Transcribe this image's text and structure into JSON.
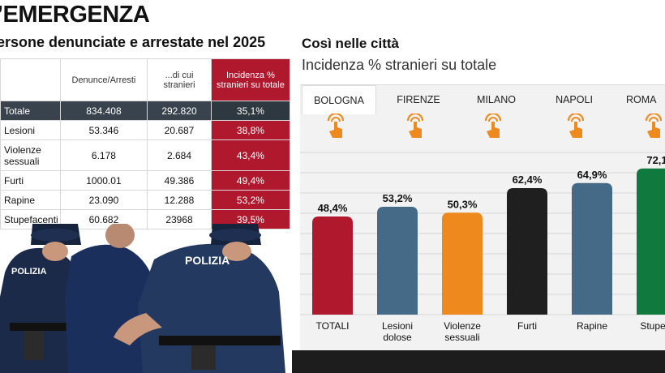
{
  "header": {
    "headline": "’EMERGENZA",
    "left_subtitle": "ersone denunciate e arrestate nel 2025",
    "right_title": "Così nelle città",
    "right_subtitle": "Incidenza % stranieri su totale"
  },
  "table": {
    "headers": [
      "",
      "Denunce/Arresti",
      "...di cui stranieri",
      "Incidenza % stranieri su totale"
    ],
    "rows": [
      {
        "label": "Totale",
        "denunce": "834.408",
        "stranieri": "292.820",
        "incidenza": "35,1%"
      },
      {
        "label": "Lesioni",
        "denunce": "53.346",
        "stranieri": "20.687",
        "incidenza": "38,8%"
      },
      {
        "label": "Violenze sessuali",
        "denunce": "6.178",
        "stranieri": "2.684",
        "incidenza": "43,4%"
      },
      {
        "label": "Furti",
        "denunce": "1000.01",
        "stranieri": "49.386",
        "incidenza": "49,4%"
      },
      {
        "label": "Rapine",
        "denunce": "23.090",
        "stranieri": "12.288",
        "incidenza": "53,2%"
      },
      {
        "label": "Stupefacenti",
        "denunce": "60.682",
        "stranieri": "23968",
        "incidenza": "39,5%"
      }
    ]
  },
  "photo": {
    "vest_text": "POLIZIA"
  },
  "tabs": [
    "BOLOGNA",
    "FIRENZE",
    "MILANO",
    "NAPOLI",
    "ROMA"
  ],
  "active_tab": "BOLOGNA",
  "icon_names": [
    "tap-hand-icon",
    "tap-hand-icon",
    "tap-hand-icon",
    "tap-hand-icon",
    "tap-hand-icon"
  ],
  "colors": {
    "accent_red": "#b0192d",
    "tap_icon": "#ee8a1d"
  },
  "chart_data": {
    "type": "bar",
    "categories": [
      "TOTALI",
      "Lesioni dolose",
      "Violenze sessuali",
      "Furti",
      "Rapine",
      "Stupefacenti"
    ],
    "category_lines": [
      [
        "TOTALI"
      ],
      [
        "Lesioni",
        "dolose"
      ],
      [
        "Violenze",
        "sessuali"
      ],
      [
        "Furti"
      ],
      [
        "Rapine"
      ],
      [
        "Stupefa"
      ]
    ],
    "values": [
      48.4,
      53.2,
      50.3,
      62.4,
      64.9,
      72.1
    ],
    "labels": [
      "48,4%",
      "53,2%",
      "50,3%",
      "62,4%",
      "64,9%",
      "72,1"
    ],
    "colors": [
      "#b0192d",
      "#456a87",
      "#ee8a1d",
      "#1f1f1f",
      "#456a87",
      "#107a3e"
    ],
    "ylim": [
      0,
      80
    ],
    "grid": true
  }
}
